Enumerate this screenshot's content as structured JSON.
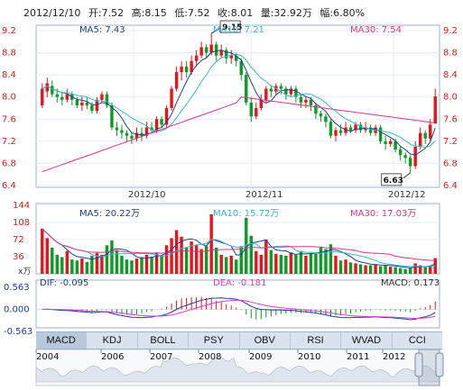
{
  "header": {
    "date": "2012/12/10",
    "open": "开:7.52",
    "high": "高:8.15",
    "low": "低:7.52",
    "close": "收:8.01",
    "volume": "量:32.92万",
    "change": "幅:6.80%"
  },
  "colors": {
    "up": "#e8141b",
    "down": "#0d9a25",
    "ma5": "#1d3f8c",
    "ma10": "#37b7cf",
    "ma30": "#d8348a",
    "dif": "#1d3f8c",
    "dea": "#d63ad6"
  },
  "price_panel": {
    "ma5_label": "MA5: 7.43",
    "ma10_label": "MA10: 7.21",
    "ma30_label": "MA30: 7.54",
    "high_annotation": "9.15",
    "low_annotation": "6.63",
    "x_labels": [
      "2012/10",
      "2012/11",
      "2012/12"
    ]
  },
  "volume_panel": {
    "ma5_label": "MA5: 20.22万",
    "ma10_label": "MA10: 15.72万",
    "ma30_label": "MA30: 17.03万",
    "unit_label": "x万"
  },
  "macd_panel": {
    "dif_label": "DIF: -0.095",
    "dea_label": "DEA: -0.181",
    "macd_label": "MACD: 0.173"
  },
  "tabs": [
    "MACD",
    "KDJ",
    "BOLL",
    "PSY",
    "OBV",
    "RSI",
    "WVAD",
    "CCI"
  ],
  "navigator": {
    "years": [
      "2004",
      "2006",
      "2007",
      "2008",
      "2009",
      "2010",
      "2011",
      "2012"
    ]
  },
  "chart_data": {
    "type": "candlestick",
    "price_axis": {
      "ticks": [
        "9.2",
        "8.8",
        "8.4",
        "8.0",
        "7.6",
        "7.2",
        "6.8",
        "6.4"
      ],
      "ylim": [
        6.4,
        9.2
      ]
    },
    "candles": [
      {
        "o": 7.85,
        "c": 8.15,
        "h": 8.25,
        "l": 7.8
      },
      {
        "o": 8.1,
        "c": 8.25,
        "h": 8.35,
        "l": 8.0
      },
      {
        "o": 8.2,
        "c": 8.05,
        "h": 8.3,
        "l": 8.0
      },
      {
        "o": 8.05,
        "c": 8.0,
        "h": 8.15,
        "l": 7.9
      },
      {
        "o": 8.0,
        "c": 7.95,
        "h": 8.1,
        "l": 7.85
      },
      {
        "o": 7.95,
        "c": 8.05,
        "h": 8.15,
        "l": 7.9
      },
      {
        "o": 8.05,
        "c": 7.95,
        "h": 8.1,
        "l": 7.85
      },
      {
        "o": 7.95,
        "c": 7.85,
        "h": 8.0,
        "l": 7.8
      },
      {
        "o": 7.85,
        "c": 7.9,
        "h": 8.0,
        "l": 7.75
      },
      {
        "o": 7.9,
        "c": 7.85,
        "h": 8.0,
        "l": 7.78
      },
      {
        "o": 7.85,
        "c": 7.75,
        "h": 7.9,
        "l": 7.7
      },
      {
        "o": 7.75,
        "c": 7.95,
        "h": 8.0,
        "l": 7.7
      },
      {
        "o": 7.95,
        "c": 8.05,
        "h": 8.1,
        "l": 7.9
      },
      {
        "o": 8.05,
        "c": 7.85,
        "h": 8.1,
        "l": 7.8
      },
      {
        "o": 7.85,
        "c": 7.45,
        "h": 7.9,
        "l": 7.4
      },
      {
        "o": 7.45,
        "c": 7.4,
        "h": 7.55,
        "l": 7.3
      },
      {
        "o": 7.4,
        "c": 7.35,
        "h": 7.5,
        "l": 7.25
      },
      {
        "o": 7.35,
        "c": 7.3,
        "h": 7.4,
        "l": 7.2
      },
      {
        "o": 7.3,
        "c": 7.25,
        "h": 7.35,
        "l": 7.15
      },
      {
        "o": 7.25,
        "c": 7.35,
        "h": 7.45,
        "l": 7.2
      },
      {
        "o": 7.35,
        "c": 7.3,
        "h": 7.45,
        "l": 7.2
      },
      {
        "o": 7.3,
        "c": 7.45,
        "h": 7.55,
        "l": 7.25
      },
      {
        "o": 7.45,
        "c": 7.4,
        "h": 7.55,
        "l": 7.35
      },
      {
        "o": 7.4,
        "c": 7.6,
        "h": 7.65,
        "l": 7.35
      },
      {
        "o": 7.6,
        "c": 7.5,
        "h": 7.65,
        "l": 7.45
      },
      {
        "o": 7.5,
        "c": 7.8,
        "h": 7.85,
        "l": 7.45
      },
      {
        "o": 7.8,
        "c": 8.15,
        "h": 8.2,
        "l": 7.75
      },
      {
        "o": 8.15,
        "c": 8.45,
        "h": 8.55,
        "l": 8.1
      },
      {
        "o": 8.45,
        "c": 8.55,
        "h": 8.65,
        "l": 8.3
      },
      {
        "o": 8.55,
        "c": 8.45,
        "h": 8.65,
        "l": 8.35
      },
      {
        "o": 8.45,
        "c": 8.65,
        "h": 8.75,
        "l": 8.4
      },
      {
        "o": 8.65,
        "c": 8.75,
        "h": 8.85,
        "l": 8.55
      },
      {
        "o": 8.75,
        "c": 8.9,
        "h": 9.0,
        "l": 8.7
      },
      {
        "o": 8.9,
        "c": 8.8,
        "h": 8.95,
        "l": 8.7
      },
      {
        "o": 8.8,
        "c": 8.95,
        "h": 9.15,
        "l": 8.75
      },
      {
        "o": 8.95,
        "c": 8.75,
        "h": 9.0,
        "l": 8.65
      },
      {
        "o": 8.75,
        "c": 8.85,
        "h": 8.95,
        "l": 8.7
      },
      {
        "o": 8.85,
        "c": 8.7,
        "h": 8.9,
        "l": 8.6
      },
      {
        "o": 8.7,
        "c": 8.75,
        "h": 8.85,
        "l": 8.6
      },
      {
        "o": 8.75,
        "c": 8.65,
        "h": 8.8,
        "l": 8.55
      },
      {
        "o": 8.65,
        "c": 8.4,
        "h": 8.7,
        "l": 8.3
      },
      {
        "o": 8.4,
        "c": 7.9,
        "h": 8.45,
        "l": 7.85
      },
      {
        "o": 7.9,
        "c": 7.65,
        "h": 8.0,
        "l": 7.55
      },
      {
        "o": 7.65,
        "c": 7.8,
        "h": 7.9,
        "l": 7.6
      },
      {
        "o": 7.8,
        "c": 7.95,
        "h": 8.05,
        "l": 7.75
      },
      {
        "o": 7.95,
        "c": 8.15,
        "h": 8.2,
        "l": 7.9
      },
      {
        "o": 8.15,
        "c": 8.1,
        "h": 8.2,
        "l": 8.0
      },
      {
        "o": 8.1,
        "c": 8.2,
        "h": 8.25,
        "l": 8.05
      },
      {
        "o": 8.2,
        "c": 8.15,
        "h": 8.25,
        "l": 8.05
      },
      {
        "o": 8.15,
        "c": 8.05,
        "h": 8.2,
        "l": 7.95
      },
      {
        "o": 8.05,
        "c": 8.15,
        "h": 8.2,
        "l": 8.0
      },
      {
        "o": 8.15,
        "c": 8.0,
        "h": 8.2,
        "l": 7.9
      },
      {
        "o": 8.0,
        "c": 7.9,
        "h": 8.05,
        "l": 7.8
      },
      {
        "o": 7.9,
        "c": 7.95,
        "h": 8.0,
        "l": 7.8
      },
      {
        "o": 7.95,
        "c": 7.85,
        "h": 8.0,
        "l": 7.75
      },
      {
        "o": 7.85,
        "c": 7.7,
        "h": 7.9,
        "l": 7.6
      },
      {
        "o": 7.7,
        "c": 7.65,
        "h": 7.75,
        "l": 7.55
      },
      {
        "o": 7.65,
        "c": 7.55,
        "h": 7.7,
        "l": 7.45
      },
      {
        "o": 7.55,
        "c": 7.3,
        "h": 7.6,
        "l": 7.25
      },
      {
        "o": 7.3,
        "c": 7.4,
        "h": 7.45,
        "l": 7.2
      },
      {
        "o": 7.4,
        "c": 7.35,
        "h": 7.5,
        "l": 7.3
      },
      {
        "o": 7.35,
        "c": 7.45,
        "h": 7.55,
        "l": 7.3
      },
      {
        "o": 7.45,
        "c": 7.4,
        "h": 7.5,
        "l": 7.35
      },
      {
        "o": 7.4,
        "c": 7.5,
        "h": 7.55,
        "l": 7.35
      },
      {
        "o": 7.5,
        "c": 7.4,
        "h": 7.55,
        "l": 7.35
      },
      {
        "o": 7.4,
        "c": 7.45,
        "h": 7.55,
        "l": 7.35
      },
      {
        "o": 7.45,
        "c": 7.35,
        "h": 7.5,
        "l": 7.3
      },
      {
        "o": 7.35,
        "c": 7.45,
        "h": 7.5,
        "l": 7.3
      },
      {
        "o": 7.45,
        "c": 7.2,
        "h": 7.5,
        "l": 7.15
      },
      {
        "o": 7.2,
        "c": 7.15,
        "h": 7.3,
        "l": 7.05
      },
      {
        "o": 7.15,
        "c": 7.2,
        "h": 7.25,
        "l": 7.1
      },
      {
        "o": 7.2,
        "c": 7.05,
        "h": 7.25,
        "l": 7.0
      },
      {
        "o": 7.05,
        "c": 6.95,
        "h": 7.1,
        "l": 6.85
      },
      {
        "o": 6.95,
        "c": 6.9,
        "h": 7.0,
        "l": 6.8
      },
      {
        "o": 6.9,
        "c": 6.75,
        "h": 6.95,
        "l": 6.63
      },
      {
        "o": 6.75,
        "c": 7.1,
        "h": 7.2,
        "l": 6.7
      },
      {
        "o": 7.1,
        "c": 7.35,
        "h": 7.45,
        "l": 7.05
      },
      {
        "o": 7.35,
        "c": 7.25,
        "h": 7.4,
        "l": 7.15
      },
      {
        "o": 7.25,
        "c": 7.5,
        "h": 7.6,
        "l": 7.2
      },
      {
        "o": 7.52,
        "c": 8.01,
        "h": 8.15,
        "l": 7.52
      }
    ],
    "volume_axis": {
      "ticks": [
        "144",
        "108",
        "72",
        "36"
      ],
      "ylim": [
        0,
        144
      ]
    },
    "volume": [
      95,
      75,
      55,
      40,
      35,
      48,
      30,
      28,
      32,
      25,
      38,
      44,
      40,
      60,
      70,
      50,
      38,
      30,
      28,
      32,
      35,
      40,
      36,
      45,
      38,
      60,
      75,
      92,
      78,
      55,
      68,
      60,
      52,
      58,
      125,
      55,
      40,
      35,
      38,
      30,
      58,
      118,
      80,
      48,
      40,
      72,
      50,
      42,
      40,
      38,
      45,
      40,
      48,
      38,
      42,
      45,
      55,
      52,
      62,
      38,
      28,
      30,
      24,
      22,
      20,
      18,
      18,
      20,
      16,
      18,
      15,
      14,
      12,
      10,
      12,
      22,
      18,
      14,
      16,
      33
    ],
    "macd_axis": {
      "ticks": [
        "0.563",
        "0.000",
        "-0.563"
      ],
      "ylim": [
        -0.563,
        0.563
      ]
    }
  }
}
